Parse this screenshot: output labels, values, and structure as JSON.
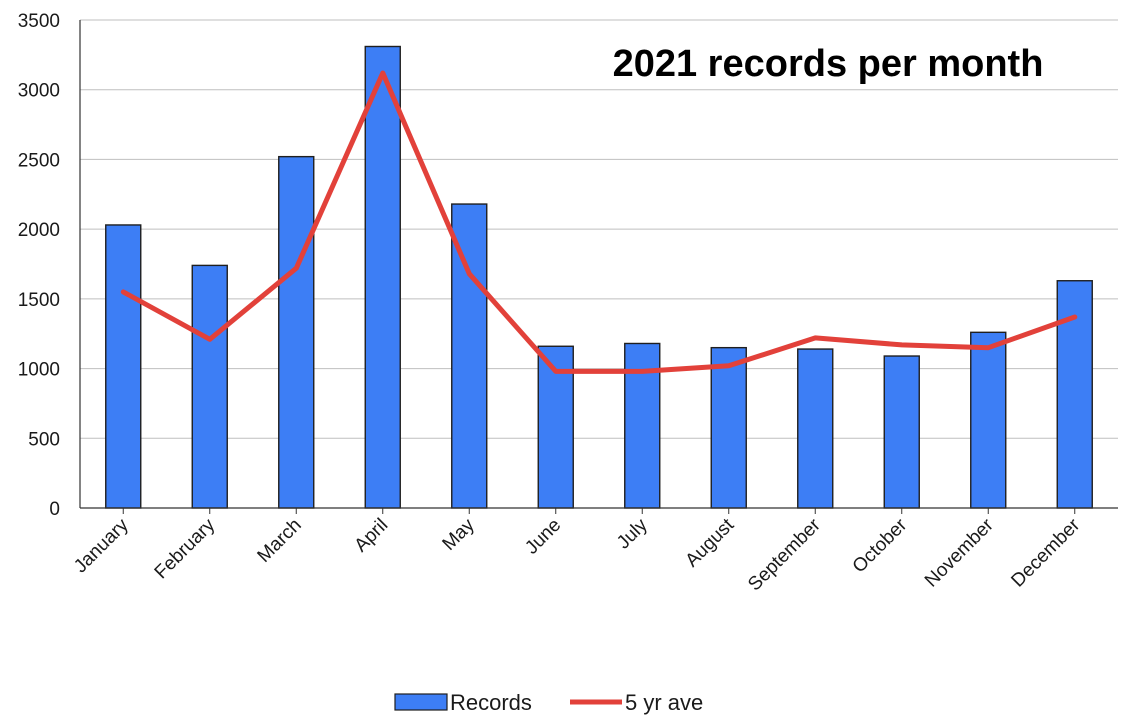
{
  "chart_data": {
    "type": "bar",
    "title": "2021 records per month",
    "xlabel": "",
    "ylabel": "",
    "ylim": [
      0,
      3500
    ],
    "yticks": [
      0,
      500,
      1000,
      1500,
      2000,
      2500,
      3000,
      3500
    ],
    "grid": true,
    "legend_position": "bottom",
    "categories": [
      "January",
      "February",
      "March",
      "April",
      "May",
      "June",
      "July",
      "August",
      "September",
      "October",
      "November",
      "December"
    ],
    "series": [
      {
        "name": "Records",
        "type": "bar",
        "color": "#3d7ef5",
        "values": [
          2030,
          1740,
          2520,
          3310,
          2180,
          1160,
          1180,
          1150,
          1140,
          1090,
          1260,
          1630
        ]
      },
      {
        "name": "5 yr ave",
        "type": "line",
        "color": "#e2413a",
        "values": [
          1550,
          1210,
          1720,
          3120,
          1680,
          980,
          980,
          1020,
          1220,
          1170,
          1150,
          1370
        ]
      }
    ]
  }
}
